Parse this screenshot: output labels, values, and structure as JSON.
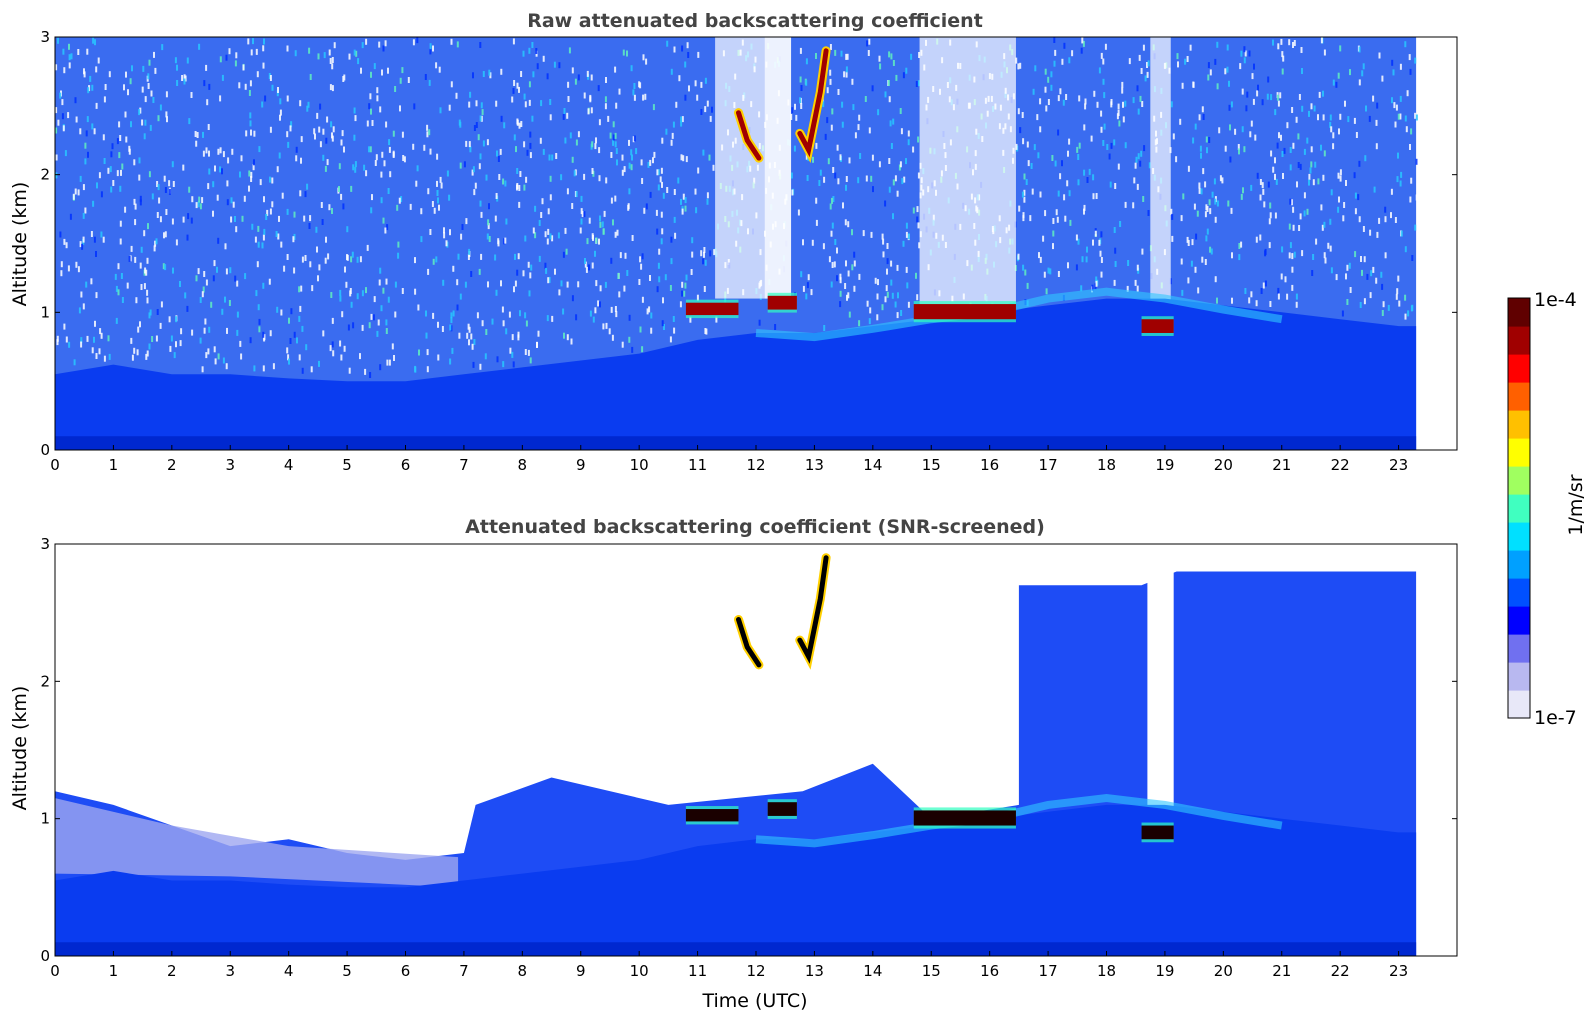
{
  "chart_data": [
    {
      "type": "heatmap",
      "title": "Raw attenuated backscattering coefficient",
      "xlabel": "",
      "ylabel": "Altitude (km)",
      "xlim": [
        0,
        24
      ],
      "ylim": [
        0,
        3
      ],
      "x_ticks": [
        "0",
        "1",
        "2",
        "3",
        "4",
        "5",
        "6",
        "7",
        "8",
        "9",
        "10",
        "11",
        "12",
        "13",
        "14",
        "15",
        "16",
        "17",
        "18",
        "19",
        "20",
        "21",
        "22",
        "23"
      ],
      "y_ticks": [
        "0",
        "1",
        "2",
        "3"
      ],
      "data_end_time": 23.3,
      "boundary_layer_top_km": [
        [
          0,
          0.55
        ],
        [
          1,
          0.62
        ],
        [
          2,
          0.55
        ],
        [
          3,
          0.55
        ],
        [
          4,
          0.52
        ],
        [
          5,
          0.5
        ],
        [
          6,
          0.5
        ],
        [
          7,
          0.55
        ],
        [
          8,
          0.6
        ],
        [
          9,
          0.65
        ],
        [
          10,
          0.7
        ],
        [
          11,
          0.8
        ],
        [
          12,
          0.85
        ],
        [
          13,
          0.85
        ],
        [
          14,
          0.9
        ],
        [
          15,
          0.95
        ],
        [
          16,
          1.0
        ],
        [
          17,
          1.05
        ],
        [
          18,
          1.1
        ],
        [
          19,
          1.1
        ],
        [
          20,
          1.05
        ],
        [
          21,
          1.0
        ],
        [
          22,
          0.95
        ],
        [
          23,
          0.9
        ]
      ],
      "cloud_layers": [
        {
          "start": 10.8,
          "end": 11.7,
          "base_km": 0.98,
          "top_km": 1.07
        },
        {
          "start": 12.2,
          "end": 12.7,
          "base_km": 1.02,
          "top_km": 1.12
        },
        {
          "start": 14.7,
          "end": 16.45,
          "base_km": 0.95,
          "top_km": 1.06
        },
        {
          "start": 18.6,
          "end": 19.15,
          "base_km": 0.85,
          "top_km": 0.95
        }
      ],
      "high_cloud_streaks": [
        {
          "points": [
            [
              11.7,
              2.45
            ],
            [
              11.85,
              2.25
            ],
            [
              12.05,
              2.12
            ]
          ]
        },
        {
          "points": [
            [
              12.75,
              2.3
            ],
            [
              12.9,
              2.18
            ],
            [
              13.1,
              2.6
            ],
            [
              13.2,
              2.9
            ]
          ]
        }
      ]
    },
    {
      "type": "heatmap",
      "title": "Attenuated backscattering coefficient (SNR-screened)",
      "xlabel": "Time (UTC)",
      "ylabel": "Altitude (km)",
      "xlim": [
        0,
        24
      ],
      "ylim": [
        0,
        3
      ],
      "x_ticks": [
        "0",
        "1",
        "2",
        "3",
        "4",
        "5",
        "6",
        "7",
        "8",
        "9",
        "10",
        "11",
        "12",
        "13",
        "14",
        "15",
        "16",
        "17",
        "18",
        "19",
        "20",
        "21",
        "22",
        "23"
      ],
      "y_ticks": [
        "0",
        "1",
        "2",
        "3"
      ],
      "data_end_time": 23.3,
      "screened_top_km": [
        [
          0,
          1.2
        ],
        [
          1,
          1.1
        ],
        [
          2,
          0.95
        ],
        [
          3,
          0.8
        ],
        [
          4,
          0.85
        ],
        [
          5,
          0.75
        ],
        [
          6,
          0.7
        ],
        [
          7,
          0.75
        ],
        [
          7.2,
          1.1
        ],
        [
          8.5,
          1.3
        ],
        [
          10.5,
          1.1
        ],
        [
          12.8,
          1.2
        ],
        [
          14,
          1.4
        ],
        [
          15,
          1.0
        ],
        [
          16.5,
          1.1
        ],
        [
          16.5,
          2.7
        ],
        [
          18.6,
          2.7
        ],
        [
          19.2,
          2.8
        ],
        [
          23.3,
          2.8
        ]
      ],
      "cloud_layers": [
        {
          "start": 10.8,
          "end": 11.7,
          "base_km": 0.98,
          "top_km": 1.07
        },
        {
          "start": 12.2,
          "end": 12.7,
          "base_km": 1.02,
          "top_km": 1.12
        },
        {
          "start": 14.7,
          "end": 16.45,
          "base_km": 0.95,
          "top_km": 1.06
        },
        {
          "start": 18.6,
          "end": 19.15,
          "base_km": 0.85,
          "top_km": 0.95
        }
      ]
    }
  ],
  "colorbar": {
    "label": "1/m/sr",
    "min_label": "1e-7",
    "max_label": "1e-4",
    "colors": [
      "#e8e8f8",
      "#b8b8f0",
      "#7070f0",
      "#0000ff",
      "#0050ff",
      "#00a0ff",
      "#00e0ff",
      "#40ffc0",
      "#a0ff60",
      "#ffff00",
      "#ffc000",
      "#ff6000",
      "#ff0000",
      "#a00000",
      "#600000"
    ]
  }
}
